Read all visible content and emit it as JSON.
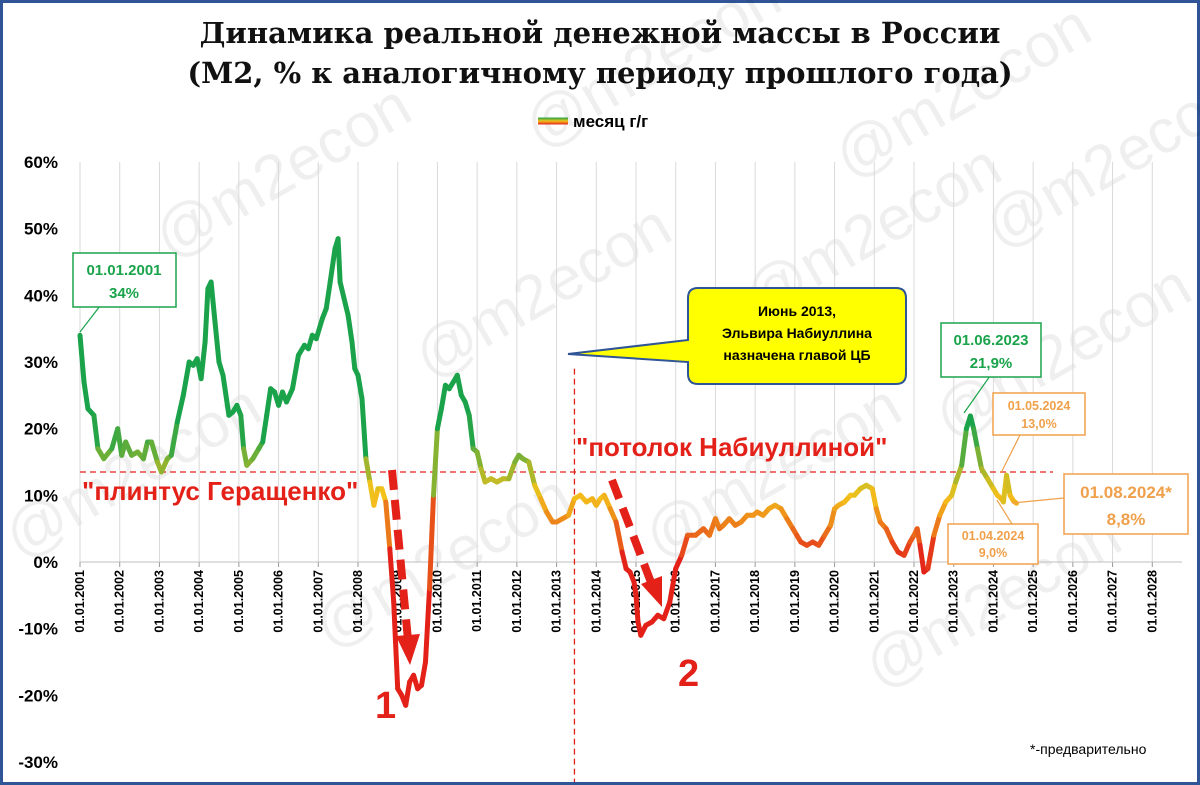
{
  "title_line1": "Динамика реальной денежной массы в России",
  "title_line2": "(М2, % к аналогичному периоду прошлого года)",
  "watermark": "@m2econ",
  "chart_data": {
    "type": "line",
    "title": "Динамика реальной денежной массы в России (М2, % к аналогичному периоду прошлого года)",
    "ylim": [
      -30,
      60
    ],
    "yticks": [
      60,
      50,
      40,
      30,
      20,
      10,
      0,
      -10,
      -20,
      -30
    ],
    "ytick_labels": [
      "60%",
      "50%",
      "40%",
      "30%",
      "20%",
      "10%",
      "0%",
      "-10%",
      "-20%",
      "-30%"
    ],
    "xlim": [
      2001,
      2029
    ],
    "xtick_labels": [
      "01.01.2001",
      "01.01.2002",
      "01.01.2003",
      "01.01.2004",
      "01.01.2005",
      "01.01.2006",
      "01.01.2007",
      "01.01.2008",
      "01.01.2009",
      "01.01.2010",
      "01.01.2011",
      "01.01.2012",
      "01.01.2013",
      "01.01.2014",
      "01.01.2015",
      "01.01.2016",
      "01.01.2017",
      "01.01.2018",
      "01.01.2019",
      "01.01.2020",
      "01.01.2021",
      "01.01.2022",
      "01.01.2023",
      "01.01.2024",
      "01.01.2025",
      "01.01.2026",
      "01.01.2027",
      "01.01.2028"
    ],
    "legend": "top-center",
    "grid": "vertical",
    "colors": {
      "high": "#1aa34a",
      "mid": "#f3c21b",
      "low": "#e32119",
      "accent_red": "#e32119",
      "green_label": "#1aa34a",
      "orange_label": "#f0a04b",
      "callout_bg": "#ffff00",
      "callout_border": "#2f5597",
      "frame": "#2f5597"
    },
    "series": [
      {
        "name": "месяц г/г",
        "points": [
          [
            2001.0,
            34
          ],
          [
            2001.1,
            27
          ],
          [
            2001.2,
            23
          ],
          [
            2001.35,
            22
          ],
          [
            2001.45,
            17
          ],
          [
            2001.6,
            15.5
          ],
          [
            2001.8,
            17
          ],
          [
            2001.95,
            20
          ],
          [
            2002.05,
            16
          ],
          [
            2002.15,
            18
          ],
          [
            2002.3,
            16
          ],
          [
            2002.45,
            16.5
          ],
          [
            2002.6,
            15.5
          ],
          [
            2002.7,
            18
          ],
          [
            2002.8,
            18
          ],
          [
            2002.95,
            15
          ],
          [
            2003.05,
            13.5
          ],
          [
            2003.2,
            15.5
          ],
          [
            2003.3,
            16
          ],
          [
            2003.45,
            21
          ],
          [
            2003.6,
            25
          ],
          [
            2003.75,
            30
          ],
          [
            2003.85,
            29.5
          ],
          [
            2003.95,
            30.5
          ],
          [
            2004.05,
            27.5
          ],
          [
            2004.15,
            33
          ],
          [
            2004.22,
            41
          ],
          [
            2004.3,
            42
          ],
          [
            2004.4,
            36
          ],
          [
            2004.5,
            30
          ],
          [
            2004.6,
            28
          ],
          [
            2004.75,
            22
          ],
          [
            2004.85,
            22.5
          ],
          [
            2004.95,
            23.5
          ],
          [
            2005.05,
            22
          ],
          [
            2005.12,
            17
          ],
          [
            2005.2,
            14.5
          ],
          [
            2005.35,
            15.5
          ],
          [
            2005.5,
            17
          ],
          [
            2005.6,
            18
          ],
          [
            2005.7,
            22
          ],
          [
            2005.8,
            26
          ],
          [
            2005.9,
            25.5
          ],
          [
            2006.0,
            23.5
          ],
          [
            2006.1,
            25.5
          ],
          [
            2006.2,
            24
          ],
          [
            2006.35,
            26
          ],
          [
            2006.5,
            31
          ],
          [
            2006.65,
            32.5
          ],
          [
            2006.75,
            32
          ],
          [
            2006.85,
            34
          ],
          [
            2006.95,
            33.5
          ],
          [
            2007.1,
            36.5
          ],
          [
            2007.2,
            38
          ],
          [
            2007.3,
            42
          ],
          [
            2007.42,
            47
          ],
          [
            2007.5,
            48.5
          ],
          [
            2007.55,
            42
          ],
          [
            2007.65,
            39.5
          ],
          [
            2007.75,
            37
          ],
          [
            2007.85,
            33
          ],
          [
            2007.92,
            29
          ],
          [
            2008.0,
            28
          ],
          [
            2008.1,
            24.5
          ],
          [
            2008.2,
            15.5
          ],
          [
            2008.3,
            12
          ],
          [
            2008.4,
            8.5
          ],
          [
            2008.5,
            11
          ],
          [
            2008.6,
            11
          ],
          [
            2008.7,
            9
          ],
          [
            2008.8,
            2
          ],
          [
            2008.9,
            -6
          ],
          [
            2009.0,
            -19
          ],
          [
            2009.1,
            -20
          ],
          [
            2009.2,
            -21.5
          ],
          [
            2009.3,
            -18
          ],
          [
            2009.4,
            -17
          ],
          [
            2009.5,
            -19
          ],
          [
            2009.6,
            -18.5
          ],
          [
            2009.7,
            -15
          ],
          [
            2009.8,
            -4
          ],
          [
            2009.9,
            10
          ],
          [
            2010.0,
            20
          ],
          [
            2010.1,
            23
          ],
          [
            2010.2,
            26.5
          ],
          [
            2010.3,
            26
          ],
          [
            2010.4,
            27
          ],
          [
            2010.5,
            28
          ],
          [
            2010.6,
            25
          ],
          [
            2010.7,
            24
          ],
          [
            2010.8,
            22
          ],
          [
            2010.9,
            17
          ],
          [
            2011.0,
            16.5
          ],
          [
            2011.1,
            14
          ],
          [
            2011.2,
            12
          ],
          [
            2011.35,
            12.5
          ],
          [
            2011.5,
            12
          ],
          [
            2011.65,
            12.5
          ],
          [
            2011.8,
            12.5
          ],
          [
            2011.95,
            15
          ],
          [
            2012.05,
            16
          ],
          [
            2012.15,
            15.5
          ],
          [
            2012.3,
            15
          ],
          [
            2012.45,
            11.5
          ],
          [
            2012.6,
            9.5
          ],
          [
            2012.75,
            7.5
          ],
          [
            2012.9,
            6
          ],
          [
            2013.0,
            6
          ],
          [
            2013.15,
            6.5
          ],
          [
            2013.3,
            7
          ],
          [
            2013.45,
            9.5
          ],
          [
            2013.6,
            10
          ],
          [
            2013.75,
            9
          ],
          [
            2013.9,
            9.5
          ],
          [
            2014.0,
            8.5
          ],
          [
            2014.1,
            9.5
          ],
          [
            2014.2,
            10
          ],
          [
            2014.35,
            8
          ],
          [
            2014.5,
            6
          ],
          [
            2014.65,
            1.5
          ],
          [
            2014.75,
            -1
          ],
          [
            2014.85,
            -1.5
          ],
          [
            2014.95,
            -3
          ],
          [
            2015.0,
            -5
          ],
          [
            2015.05,
            -9
          ],
          [
            2015.12,
            -11
          ],
          [
            2015.25,
            -9.5
          ],
          [
            2015.4,
            -9
          ],
          [
            2015.55,
            -8
          ],
          [
            2015.7,
            -8.5
          ],
          [
            2015.85,
            -6
          ],
          [
            2016.0,
            -1
          ],
          [
            2016.15,
            1
          ],
          [
            2016.3,
            4
          ],
          [
            2016.5,
            4
          ],
          [
            2016.7,
            5
          ],
          [
            2016.85,
            4
          ],
          [
            2017.0,
            6.5
          ],
          [
            2017.1,
            5
          ],
          [
            2017.2,
            5.5
          ],
          [
            2017.35,
            6.5
          ],
          [
            2017.5,
            5.5
          ],
          [
            2017.65,
            6
          ],
          [
            2017.8,
            7
          ],
          [
            2017.95,
            7
          ],
          [
            2018.05,
            7.5
          ],
          [
            2018.2,
            7
          ],
          [
            2018.35,
            8
          ],
          [
            2018.5,
            8.5
          ],
          [
            2018.65,
            8
          ],
          [
            2018.8,
            6.5
          ],
          [
            2018.95,
            5
          ],
          [
            2019.05,
            4
          ],
          [
            2019.15,
            3
          ],
          [
            2019.3,
            2.5
          ],
          [
            2019.45,
            3
          ],
          [
            2019.6,
            2.5
          ],
          [
            2019.75,
            4
          ],
          [
            2019.9,
            5.5
          ],
          [
            2020.0,
            8
          ],
          [
            2020.1,
            8.5
          ],
          [
            2020.25,
            9
          ],
          [
            2020.4,
            10
          ],
          [
            2020.5,
            10
          ],
          [
            2020.65,
            11
          ],
          [
            2020.8,
            11.5
          ],
          [
            2020.95,
            11
          ],
          [
            2021.05,
            8
          ],
          [
            2021.15,
            6
          ],
          [
            2021.3,
            5
          ],
          [
            2021.45,
            3
          ],
          [
            2021.6,
            1.5
          ],
          [
            2021.75,
            1
          ],
          [
            2021.9,
            3
          ],
          [
            2022.0,
            4
          ],
          [
            2022.08,
            5
          ],
          [
            2022.15,
            2.5
          ],
          [
            2022.25,
            -1.5
          ],
          [
            2022.35,
            -1
          ],
          [
            2022.5,
            4
          ],
          [
            2022.65,
            7
          ],
          [
            2022.8,
            9
          ],
          [
            2022.95,
            10
          ],
          [
            2023.05,
            12
          ],
          [
            2023.2,
            14.5
          ],
          [
            2023.32,
            20
          ],
          [
            2023.42,
            21.9
          ],
          [
            2023.5,
            20
          ],
          [
            2023.6,
            17
          ],
          [
            2023.7,
            14
          ],
          [
            2023.85,
            12.5
          ],
          [
            2024.0,
            11
          ],
          [
            2024.1,
            10
          ],
          [
            2024.2,
            9.5
          ],
          [
            2024.25,
            9.0
          ],
          [
            2024.33,
            13.0
          ],
          [
            2024.42,
            10
          ],
          [
            2024.5,
            9.2
          ],
          [
            2024.58,
            8.8
          ]
        ]
      }
    ],
    "reference_lines": [
      {
        "type": "horizontal",
        "y": 13.5
      },
      {
        "type": "vertical",
        "x": 2013.45
      }
    ]
  },
  "legend_label": "месяц г/г",
  "labels": {
    "plintus": "\"плинтус Геращенко\"",
    "potolok": "\"потолок Набиуллиной\"",
    "crisis1": "1",
    "crisis2": "2",
    "prelim": "*-предварительно"
  },
  "callout": {
    "line1": "Июнь 2013,",
    "line2": "Эльвира  Набиуллина",
    "line3": "назначена главой ЦБ"
  },
  "annotations": [
    {
      "date": "01.01.2001",
      "value": "34%",
      "x": 2001.0,
      "y": 34,
      "color": "#1aa34a"
    },
    {
      "date": "01.06.2023",
      "value": "21,9%",
      "x": 2023.42,
      "y": 21.9,
      "color": "#1aa34a"
    },
    {
      "date": "01.05.2024",
      "value": "13,0%",
      "x": 2024.33,
      "y": 13.0,
      "color": "#f0a04b"
    },
    {
      "date": "01.04.2024",
      "value": "9,0%",
      "x": 2024.25,
      "y": 9.0,
      "color": "#f0a04b"
    },
    {
      "date": "01.08.2024*",
      "value": "8,8%",
      "x": 2024.58,
      "y": 8.8,
      "color": "#f0a04b"
    }
  ]
}
